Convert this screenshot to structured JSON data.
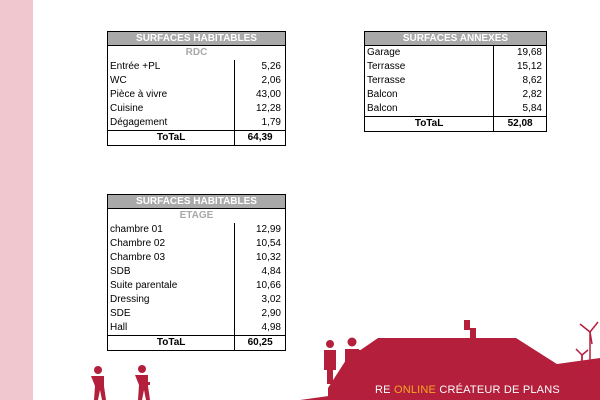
{
  "tables": {
    "rdc": {
      "title": "SURFACES HABITABLES",
      "subtitle": "RDC",
      "rows": [
        {
          "label": "Entrée +PL",
          "value": "5,26"
        },
        {
          "label": "WC",
          "value": "2,06"
        },
        {
          "label": "Pièce à vivre",
          "value": "43,00"
        },
        {
          "label": "Cuisine",
          "value": "12,28"
        },
        {
          "label": "Dégagement",
          "value": "1,79"
        }
      ],
      "total_label": "ToTaL",
      "total_value": "64,39"
    },
    "annexes": {
      "title": "SURFACES ANNEXES",
      "rows": [
        {
          "label": "Garage",
          "value": "19,68"
        },
        {
          "label": "Terrasse",
          "value": "15,12"
        },
        {
          "label": "Terrasse",
          "value": "8,62"
        },
        {
          "label": "Balcon",
          "value": "2,82"
        },
        {
          "label": "Balcon",
          "value": "5,84"
        }
      ],
      "total_label": "ToTaL",
      "total_value": "52,08"
    },
    "etage": {
      "title": "SURFACES HABITABLES",
      "subtitle": "ETAGE",
      "rows": [
        {
          "label": "chambre 01",
          "value": "12,99"
        },
        {
          "label": "Chambre 02",
          "value": "10,54"
        },
        {
          "label": "Chambre 03",
          "value": "10,32"
        },
        {
          "label": "SDB",
          "value": "4,84"
        },
        {
          "label": "Suite parentale",
          "value": "10,66"
        },
        {
          "label": "Dressing",
          "value": "3,02"
        },
        {
          "label": "SDE",
          "value": "2,90"
        },
        {
          "label": "Hall",
          "value": "4,98"
        }
      ],
      "total_label": "ToTaL",
      "total_value": "60,25"
    }
  },
  "banner": {
    "part1": "RE ",
    "part2": "ONLINE",
    "part3": " CRÉATEUR DE PLANS"
  },
  "colors": {
    "side_band": "#f0c6cf",
    "header_fill": "#a9a9a9",
    "brand_red": "#b41f3c",
    "accent_orange": "#f5a623"
  }
}
